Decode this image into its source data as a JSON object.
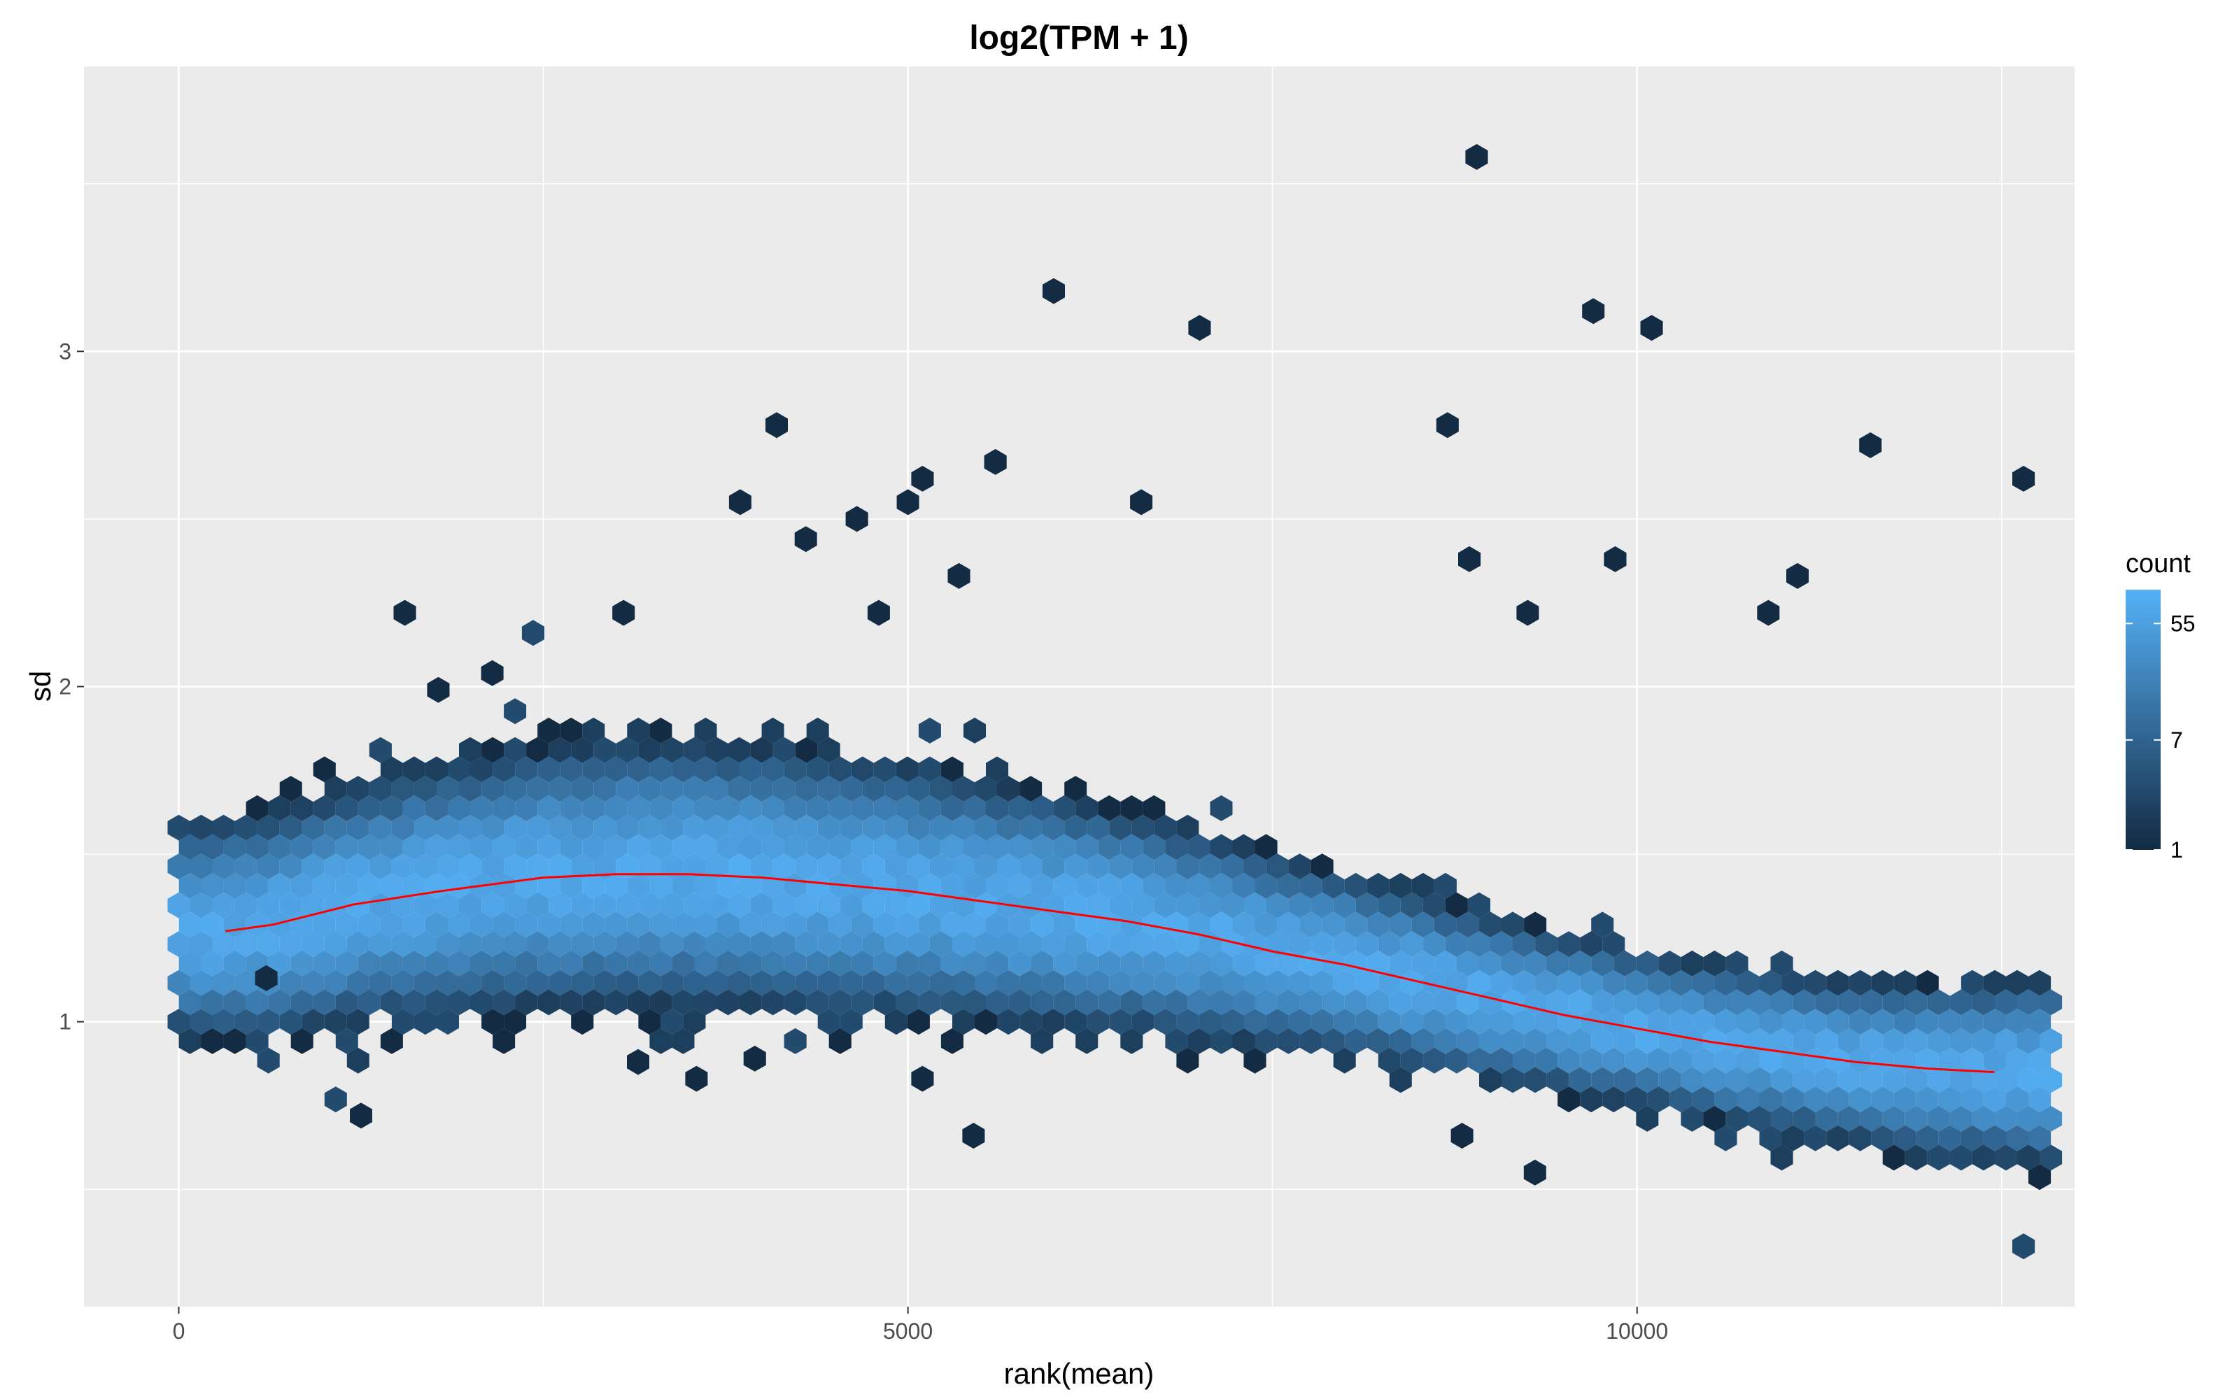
{
  "chart_data": {
    "type": "hexbin",
    "title": "log2(TPM + 1)",
    "xlabel": "rank(mean)",
    "ylabel": "sd",
    "xlim": [
      -650,
      13000
    ],
    "ylim": [
      0.15,
      3.85
    ],
    "x_ticks": [
      0,
      5000,
      10000
    ],
    "x_tick_labels": [
      "0",
      "5000",
      "10000"
    ],
    "y_ticks": [
      1,
      2,
      3
    ],
    "y_tick_labels": [
      "1",
      "2",
      "3"
    ],
    "grid": true,
    "legend": {
      "title": "count",
      "position": "right",
      "scale": "log",
      "min": 1,
      "max": 100,
      "breaks": [
        1,
        7,
        55
      ],
      "break_labels": [
        "1",
        "7",
        "55"
      ],
      "color_low": "#132B43",
      "color_high": "#56B1F7"
    },
    "trend_line": {
      "color": "#ff0000",
      "x": [
        320,
        650,
        1200,
        1800,
        2500,
        3000,
        3500,
        4000,
        4500,
        5000,
        5500,
        6000,
        6500,
        7000,
        7500,
        8000,
        8500,
        9000,
        9500,
        10000,
        10500,
        11000,
        11500,
        12000,
        12450
      ],
      "y": [
        1.27,
        1.29,
        1.35,
        1.39,
        1.43,
        1.44,
        1.44,
        1.43,
        1.41,
        1.39,
        1.36,
        1.33,
        1.3,
        1.26,
        1.21,
        1.17,
        1.12,
        1.07,
        1.02,
        0.98,
        0.94,
        0.91,
        0.88,
        0.86,
        0.85
      ]
    },
    "outliers": [
      {
        "x": 8900,
        "y": 3.58,
        "count": 1
      },
      {
        "x": 6000,
        "y": 3.18,
        "count": 1
      },
      {
        "x": 7000,
        "y": 3.07,
        "count": 1
      },
      {
        "x": 9700,
        "y": 3.12,
        "count": 1
      },
      {
        "x": 10100,
        "y": 3.07,
        "count": 1
      },
      {
        "x": 4100,
        "y": 2.78,
        "count": 1
      },
      {
        "x": 8700,
        "y": 2.78,
        "count": 1
      },
      {
        "x": 5600,
        "y": 2.67,
        "count": 1
      },
      {
        "x": 11600,
        "y": 2.72,
        "count": 1
      },
      {
        "x": 5100,
        "y": 2.62,
        "count": 1
      },
      {
        "x": 12650,
        "y": 2.62,
        "count": 1
      },
      {
        "x": 3850,
        "y": 2.55,
        "count": 1
      },
      {
        "x": 5000,
        "y": 2.55,
        "count": 1
      },
      {
        "x": 6600,
        "y": 2.55,
        "count": 1
      },
      {
        "x": 4650,
        "y": 2.5,
        "count": 1
      },
      {
        "x": 4300,
        "y": 2.44,
        "count": 1
      },
      {
        "x": 8850,
        "y": 2.38,
        "count": 1
      },
      {
        "x": 9850,
        "y": 2.38,
        "count": 1
      },
      {
        "x": 5350,
        "y": 2.33,
        "count": 1
      },
      {
        "x": 11100,
        "y": 2.33,
        "count": 1
      },
      {
        "x": 1550,
        "y": 2.22,
        "count": 1
      },
      {
        "x": 3050,
        "y": 2.22,
        "count": 1
      },
      {
        "x": 4800,
        "y": 2.22,
        "count": 1
      },
      {
        "x": 9250,
        "y": 2.22,
        "count": 1
      },
      {
        "x": 10900,
        "y": 2.22,
        "count": 1
      },
      {
        "x": 2430,
        "y": 2.16,
        "count": 3
      },
      {
        "x": 2150,
        "y": 2.04,
        "count": 1
      },
      {
        "x": 1780,
        "y": 1.99,
        "count": 1
      },
      {
        "x": 600,
        "y": 1.13,
        "count": 1
      },
      {
        "x": 1250,
        "y": 0.72,
        "count": 1
      },
      {
        "x": 3550,
        "y": 0.83,
        "count": 1
      },
      {
        "x": 3150,
        "y": 0.88,
        "count": 1
      },
      {
        "x": 3950,
        "y": 0.89,
        "count": 1
      },
      {
        "x": 5100,
        "y": 0.83,
        "count": 1
      },
      {
        "x": 5450,
        "y": 0.66,
        "count": 1
      },
      {
        "x": 8800,
        "y": 0.66,
        "count": 1
      },
      {
        "x": 9300,
        "y": 0.55,
        "count": 1
      },
      {
        "x": 12650,
        "y": 0.33,
        "count": 3
      }
    ]
  }
}
